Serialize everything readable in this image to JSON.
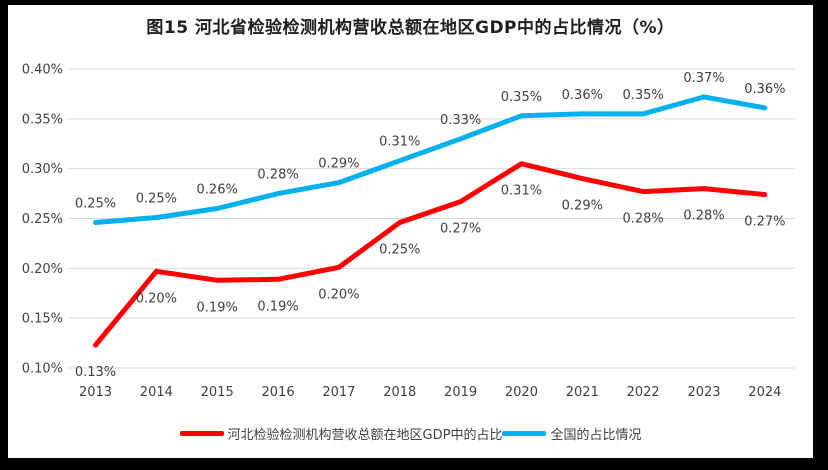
{
  "title": "图15 河北省检验检测机构营收总额在地区GDP中的占比情况（%）",
  "legend": {
    "items": [
      {
        "label": "河北检验检测机构营收总额在地区GDP中的占比",
        "color": "#FE0000"
      },
      {
        "label": "全国的占比情况",
        "color": "#00B0F0"
      }
    ]
  },
  "chart_data": {
    "type": "line",
    "title": "图15 河北省检验检测机构营收总额在地区GDP中的占比情况（%）",
    "categories": [
      "2013",
      "2014",
      "2015",
      "2016",
      "2017",
      "2018",
      "2019",
      "2020",
      "2021",
      "2022",
      "2023",
      "2024"
    ],
    "y_axis": {
      "min": 0.1,
      "max": 0.4,
      "tick_labels": [
        "0.10%",
        "0.15%",
        "0.20%",
        "0.25%",
        "0.30%",
        "0.35%",
        "0.40%"
      ],
      "grid": true
    },
    "series": [
      {
        "name": "河北检验检测机构营收总额在地区GDP中的占比",
        "color": "#FE0000",
        "values": [
          0.13,
          0.2,
          0.19,
          0.19,
          0.2,
          0.25,
          0.27,
          0.31,
          0.29,
          0.28,
          0.28,
          0.27
        ],
        "plot_values": [
          0.123,
          0.197,
          0.188,
          0.189,
          0.201,
          0.246,
          0.267,
          0.305,
          0.29,
          0.277,
          0.28,
          0.274
        ],
        "point_labels": [
          "0.13%",
          "0.20%",
          "0.19%",
          "0.19%",
          "0.20%",
          "0.25%",
          "0.27%",
          "0.31%",
          "0.29%",
          "0.28%",
          "0.28%",
          "0.27%"
        ],
        "label_position": "below"
      },
      {
        "name": "全国的占比情况",
        "color": "#00B0F0",
        "values": [
          0.25,
          0.25,
          0.26,
          0.28,
          0.29,
          0.31,
          0.33,
          0.35,
          0.36,
          0.35,
          0.37,
          0.36
        ],
        "plot_values": [
          0.246,
          0.251,
          0.26,
          0.275,
          0.286,
          0.308,
          0.33,
          0.353,
          0.355,
          0.355,
          0.372,
          0.361
        ],
        "point_labels": [
          "0.25%",
          "0.25%",
          "0.26%",
          "0.28%",
          "0.29%",
          "0.31%",
          "0.33%",
          "0.35%",
          "0.36%",
          "0.35%",
          "0.37%",
          "0.36%"
        ],
        "label_position": "above"
      }
    ],
    "style": {
      "grid_color": "#D9D9D9",
      "text_color": "#404040",
      "line_width": 5,
      "legend_position": "bottom"
    }
  }
}
